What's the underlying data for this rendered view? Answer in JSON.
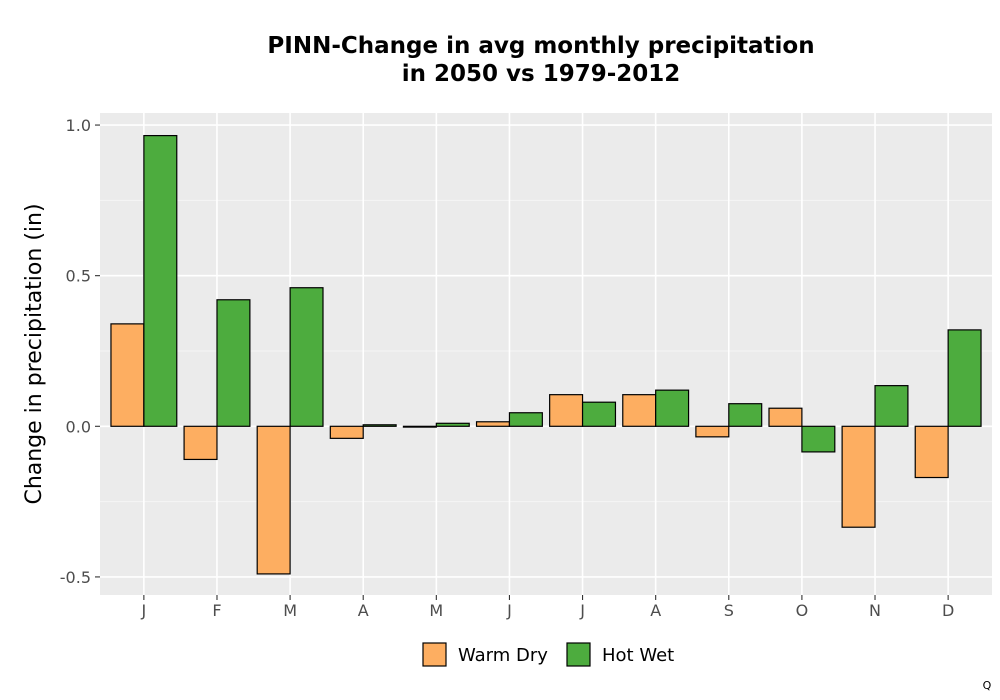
{
  "chart_data": {
    "type": "bar",
    "title_lines": [
      "PINN-Change in avg monthly precipitation",
      "in 2050 vs 1979-2012"
    ],
    "xlabel": "",
    "ylabel": "Change in precipitation (in)",
    "categories": [
      "J",
      "F",
      "M",
      "A",
      "M",
      "J",
      "J",
      "A",
      "S",
      "O",
      "N",
      "D"
    ],
    "series": [
      {
        "name": "Warm Dry",
        "color": "#FDAE61",
        "values": [
          0.34,
          -0.11,
          -0.49,
          -0.04,
          0.0,
          0.015,
          0.105,
          0.105,
          -0.035,
          0.06,
          -0.335,
          -0.17
        ]
      },
      {
        "name": "Hot Wet",
        "color": "#4DAC3E",
        "values": [
          0.965,
          0.42,
          0.46,
          0.005,
          0.01,
          0.045,
          0.08,
          0.12,
          0.075,
          -0.085,
          0.135,
          0.32
        ]
      }
    ],
    "ylim": [
      -0.56,
      1.04
    ],
    "yticks": [
      -0.5,
      0.0,
      0.5,
      1.0
    ],
    "ytick_labels": [
      "-0.5",
      "0.0",
      "0.5",
      "1.0"
    ],
    "grid": true,
    "legend_position": "bottom"
  },
  "corner_mark": "Q"
}
